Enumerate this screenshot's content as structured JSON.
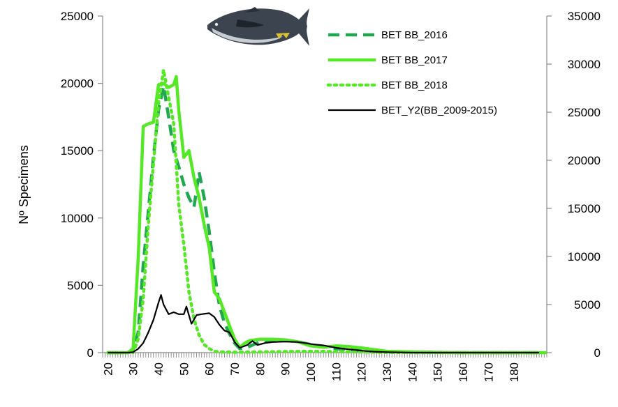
{
  "chart_data": {
    "type": "line",
    "ylabel": "Nº Specimens",
    "xlabel": "",
    "title": "",
    "x_tick_labels": [
      "20",
      "30",
      "40",
      "50",
      "60",
      "70",
      "80",
      "90",
      "100",
      "110",
      "120",
      "130",
      "140",
      "150",
      "160",
      "170",
      "180"
    ],
    "x_tick_values": [
      20,
      30,
      40,
      50,
      60,
      70,
      80,
      90,
      100,
      110,
      120,
      130,
      140,
      150,
      160,
      170,
      180
    ],
    "xlim": [
      18,
      193
    ],
    "ylim_left": [
      0,
      25000
    ],
    "ylim_right": [
      0,
      35000
    ],
    "y_left_ticks": [
      0,
      5000,
      10000,
      15000,
      20000,
      25000
    ],
    "y_right_ticks": [
      0,
      5000,
      10000,
      15000,
      20000,
      25000,
      30000,
      35000
    ],
    "legend_position": "top-right",
    "grid": false,
    "series": [
      {
        "name": "BET BB_2016",
        "axis": "left",
        "color": "#1fa84f",
        "style": "dashed",
        "points": [
          [
            20,
            0
          ],
          [
            28,
            0
          ],
          [
            30,
            200
          ],
          [
            32,
            1500
          ],
          [
            34,
            6500
          ],
          [
            36,
            10500
          ],
          [
            38,
            14500
          ],
          [
            40,
            18000
          ],
          [
            42,
            19800
          ],
          [
            44,
            17500
          ],
          [
            46,
            15000
          ],
          [
            48,
            13800
          ],
          [
            50,
            12500
          ],
          [
            52,
            11500
          ],
          [
            54,
            10800
          ],
          [
            56,
            13400
          ],
          [
            58,
            11500
          ],
          [
            60,
            9000
          ],
          [
            62,
            6000
          ],
          [
            64,
            3500
          ],
          [
            66,
            2200
          ],
          [
            68,
            1400
          ],
          [
            70,
            700
          ],
          [
            72,
            300
          ],
          [
            75,
            400
          ],
          [
            80,
            800
          ],
          [
            85,
            900
          ],
          [
            90,
            900
          ],
          [
            95,
            800
          ],
          [
            100,
            600
          ],
          [
            105,
            450
          ],
          [
            110,
            300
          ],
          [
            115,
            200
          ],
          [
            120,
            150
          ],
          [
            130,
            80
          ],
          [
            140,
            40
          ],
          [
            160,
            0
          ],
          [
            190,
            0
          ]
        ]
      },
      {
        "name": "BET BB_2017",
        "axis": "left",
        "color": "#55e825",
        "style": "solid",
        "points": [
          [
            20,
            0
          ],
          [
            28,
            0
          ],
          [
            30,
            300
          ],
          [
            32,
            7000
          ],
          [
            34,
            16800
          ],
          [
            36,
            17000
          ],
          [
            38,
            17100
          ],
          [
            40,
            19900
          ],
          [
            42,
            20000
          ],
          [
            44,
            19700
          ],
          [
            46,
            19900
          ],
          [
            47,
            20500
          ],
          [
            48,
            18000
          ],
          [
            50,
            14500
          ],
          [
            52,
            15000
          ],
          [
            54,
            13000
          ],
          [
            56,
            11500
          ],
          [
            58,
            9500
          ],
          [
            60,
            7800
          ],
          [
            62,
            4500
          ],
          [
            64,
            4000
          ],
          [
            66,
            3000
          ],
          [
            68,
            2000
          ],
          [
            70,
            1000
          ],
          [
            72,
            400
          ],
          [
            74,
            700
          ],
          [
            76,
            900
          ],
          [
            80,
            1000
          ],
          [
            85,
            1000
          ],
          [
            90,
            950
          ],
          [
            95,
            800
          ],
          [
            100,
            500
          ],
          [
            105,
            400
          ],
          [
            110,
            500
          ],
          [
            115,
            450
          ],
          [
            120,
            350
          ],
          [
            130,
            100
          ],
          [
            140,
            50
          ],
          [
            150,
            20
          ],
          [
            160,
            0
          ],
          [
            193,
            0
          ]
        ]
      },
      {
        "name": "BET BB_2018",
        "axis": "left",
        "color": "#55e825",
        "style": "dotted",
        "points": [
          [
            20,
            0
          ],
          [
            30,
            0
          ],
          [
            32,
            1000
          ],
          [
            34,
            4000
          ],
          [
            36,
            9500
          ],
          [
            38,
            14000
          ],
          [
            40,
            18500
          ],
          [
            42,
            21000
          ],
          [
            44,
            19000
          ],
          [
            46,
            17000
          ],
          [
            48,
            11000
          ],
          [
            50,
            8000
          ],
          [
            52,
            4500
          ],
          [
            54,
            2500
          ],
          [
            56,
            1300
          ],
          [
            58,
            600
          ],
          [
            60,
            300
          ],
          [
            62,
            100
          ],
          [
            64,
            50
          ],
          [
            70,
            30
          ],
          [
            80,
            50
          ],
          [
            90,
            80
          ],
          [
            100,
            100
          ],
          [
            110,
            80
          ],
          [
            120,
            50
          ],
          [
            130,
            20
          ],
          [
            140,
            0
          ],
          [
            190,
            0
          ]
        ]
      },
      {
        "name": "BET_Y2(BB_2009-2015)",
        "axis": "right",
        "color": "#000000",
        "style": "solid",
        "points": [
          [
            20,
            0
          ],
          [
            28,
            0
          ],
          [
            30,
            50
          ],
          [
            32,
            400
          ],
          [
            34,
            1000
          ],
          [
            36,
            2100
          ],
          [
            38,
            3400
          ],
          [
            40,
            5200
          ],
          [
            41,
            6000
          ],
          [
            42,
            5000
          ],
          [
            44,
            4000
          ],
          [
            46,
            4200
          ],
          [
            48,
            4000
          ],
          [
            50,
            4000
          ],
          [
            51,
            4800
          ],
          [
            53,
            3000
          ],
          [
            55,
            3900
          ],
          [
            57,
            4000
          ],
          [
            60,
            4100
          ],
          [
            62,
            3700
          ],
          [
            64,
            2900
          ],
          [
            66,
            2300
          ],
          [
            68,
            2100
          ],
          [
            70,
            1100
          ],
          [
            72,
            500
          ],
          [
            75,
            800
          ],
          [
            77,
            1200
          ],
          [
            79,
            800
          ],
          [
            82,
            1000
          ],
          [
            85,
            1100
          ],
          [
            90,
            1150
          ],
          [
            95,
            1100
          ],
          [
            100,
            900
          ],
          [
            105,
            750
          ],
          [
            110,
            500
          ],
          [
            115,
            350
          ],
          [
            120,
            200
          ],
          [
            125,
            100
          ],
          [
            130,
            50
          ],
          [
            140,
            0
          ],
          [
            190,
            0
          ]
        ]
      }
    ]
  }
}
